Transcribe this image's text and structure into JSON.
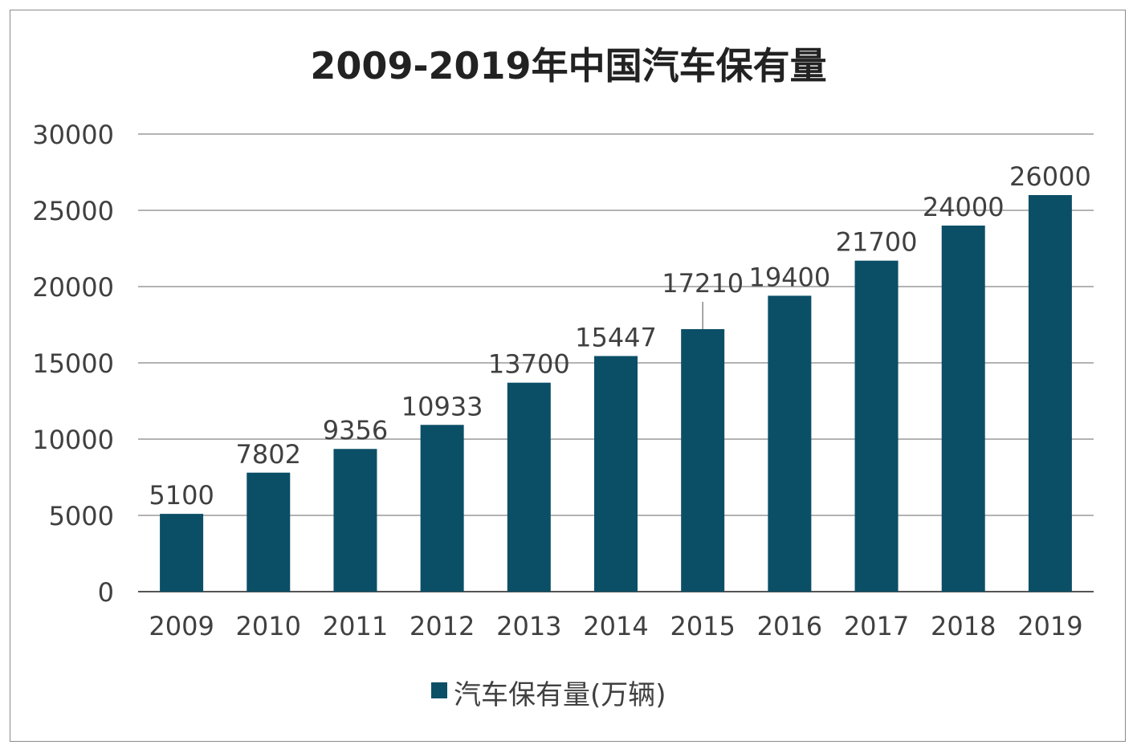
{
  "chart_data": {
    "type": "bar",
    "title": "2009-2019年中国汽车保有量",
    "categories": [
      "2009",
      "2010",
      "2011",
      "2012",
      "2013",
      "2014",
      "2015",
      "2016",
      "2017",
      "2018",
      "2019"
    ],
    "series": [
      {
        "name": "汽车保有量(万辆)",
        "values": [
          5100,
          7802,
          9356,
          10933,
          13700,
          15447,
          17210,
          19400,
          21700,
          24000,
          26000
        ],
        "color": "#0b4f67"
      }
    ],
    "ylim": [
      0,
      30000
    ],
    "yticks": [
      0,
      5000,
      10000,
      15000,
      20000,
      25000,
      30000
    ],
    "grid": true,
    "legend": "bottom",
    "xlabel": "",
    "ylabel": ""
  }
}
